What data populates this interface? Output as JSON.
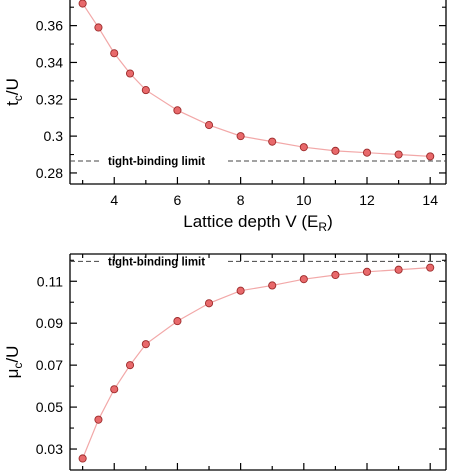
{
  "chart_data": [
    {
      "type": "line",
      "ylabel_main": "t",
      "ylabel_sub": "c",
      "ylabel_rest": "/U",
      "xlabel_main": "Lattice depth V (E",
      "xlabel_sub": "R",
      "xlabel_rest": ")",
      "xlim": [
        2.6,
        14.5
      ],
      "ylim": [
        0.274,
        0.375
      ],
      "xticks": [
        4,
        6,
        8,
        10,
        12,
        14
      ],
      "yticks": [
        0.28,
        0.3,
        0.32,
        0.34,
        0.36
      ],
      "ytick_labels": [
        "0.28",
        "0.3",
        "0.32",
        "0.34",
        "0.36"
      ],
      "reference_line": {
        "y": 0.2865,
        "label": "tight-binding limit"
      },
      "series": [
        {
          "x": [
            3.0,
            3.5,
            4.0,
            4.5,
            5.0,
            6.0,
            7.0,
            8.0,
            9.0,
            10.0,
            11.0,
            12.0,
            13.0,
            14.0
          ],
          "y": [
            0.372,
            0.359,
            0.345,
            0.334,
            0.325,
            0.314,
            0.306,
            0.3,
            0.297,
            0.294,
            0.292,
            0.291,
            0.29,
            0.289
          ]
        }
      ],
      "marker_color": "#e8696b",
      "line_color": "#f2a8a8"
    },
    {
      "type": "line",
      "ylabel_main": "μ",
      "ylabel_sub": "c",
      "ylabel_rest": "/U",
      "xlim": [
        2.6,
        14.5
      ],
      "ylim": [
        0.02,
        0.123
      ],
      "xticks": [
        4,
        6,
        8,
        10,
        12,
        14
      ],
      "yticks": [
        0.03,
        0.05,
        0.07,
        0.09,
        0.11
      ],
      "ytick_labels": [
        "0.03",
        "0.05",
        "0.07",
        "0.09",
        "0.11"
      ],
      "reference_line": {
        "y": 0.1195,
        "label": "tight-binding limit"
      },
      "series": [
        {
          "x": [
            3.0,
            3.5,
            4.0,
            4.5,
            5.0,
            6.0,
            7.0,
            8.0,
            9.0,
            10.0,
            11.0,
            12.0,
            13.0,
            14.0
          ],
          "y": [
            0.0255,
            0.044,
            0.0585,
            0.07,
            0.08,
            0.091,
            0.0995,
            0.1055,
            0.108,
            0.111,
            0.113,
            0.1145,
            0.1155,
            0.1165
          ]
        }
      ],
      "marker_color": "#e8696b",
      "line_color": "#f2a8a8"
    }
  ]
}
